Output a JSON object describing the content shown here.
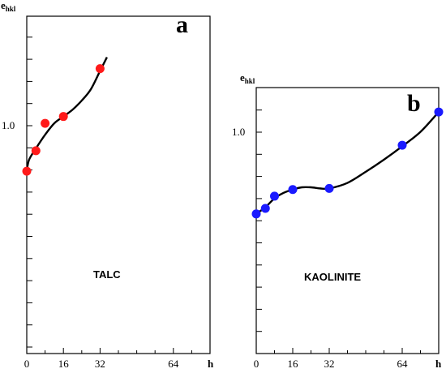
{
  "chart_data": [
    {
      "type": "scatter",
      "panel_label": "a",
      "annotation": "TALC",
      "ylabel_main": "e",
      "ylabel_sub": "hkl",
      "xlabel": "h",
      "x_ticks": [
        "0",
        "16",
        "32",
        "64"
      ],
      "y_tick_label": "1.0",
      "xlim": [
        0,
        80
      ],
      "ylim": [
        0.0,
        1.48
      ],
      "marker_color": "#ff1a1a",
      "points": [
        {
          "x": 0,
          "y": 0.8
        },
        {
          "x": 4,
          "y": 0.89
        },
        {
          "x": 8,
          "y": 1.01
        },
        {
          "x": 16,
          "y": 1.04
        },
        {
          "x": 32,
          "y": 1.25
        }
      ],
      "fit_curve": [
        {
          "x": 0,
          "y": 0.8
        },
        {
          "x": 1,
          "y": 0.85
        },
        {
          "x": 4,
          "y": 0.9
        },
        {
          "x": 8,
          "y": 0.96
        },
        {
          "x": 12,
          "y": 1.01
        },
        {
          "x": 16,
          "y": 1.04
        },
        {
          "x": 20,
          "y": 1.07
        },
        {
          "x": 24,
          "y": 1.11
        },
        {
          "x": 28,
          "y": 1.16
        },
        {
          "x": 32,
          "y": 1.24
        },
        {
          "x": 35,
          "y": 1.3
        }
      ]
    },
    {
      "type": "scatter",
      "panel_label": "b",
      "annotation": "KAOLINITE",
      "ylabel_main": "e",
      "ylabel_sub": "hkl",
      "xlabel": "h",
      "x_ticks": [
        "0",
        "16",
        "32",
        "64"
      ],
      "y_tick_label": "1.0",
      "xlim": [
        0,
        80
      ],
      "ylim": [
        0.0,
        1.2
      ],
      "marker_color": "#1a1aff",
      "points": [
        {
          "x": 0,
          "y": 0.63
        },
        {
          "x": 4,
          "y": 0.655
        },
        {
          "x": 8,
          "y": 0.71
        },
        {
          "x": 16,
          "y": 0.74
        },
        {
          "x": 32,
          "y": 0.745
        },
        {
          "x": 64,
          "y": 0.94
        },
        {
          "x": 80,
          "y": 1.09
        }
      ],
      "fit_curve": [
        {
          "x": 0,
          "y": 0.63
        },
        {
          "x": 4,
          "y": 0.66
        },
        {
          "x": 8,
          "y": 0.7
        },
        {
          "x": 12,
          "y": 0.725
        },
        {
          "x": 16,
          "y": 0.74
        },
        {
          "x": 20,
          "y": 0.75
        },
        {
          "x": 24,
          "y": 0.75
        },
        {
          "x": 28,
          "y": 0.745
        },
        {
          "x": 32,
          "y": 0.745
        },
        {
          "x": 40,
          "y": 0.77
        },
        {
          "x": 48,
          "y": 0.82
        },
        {
          "x": 56,
          "y": 0.875
        },
        {
          "x": 64,
          "y": 0.935
        },
        {
          "x": 72,
          "y": 1.0
        },
        {
          "x": 80,
          "y": 1.09
        }
      ]
    }
  ]
}
